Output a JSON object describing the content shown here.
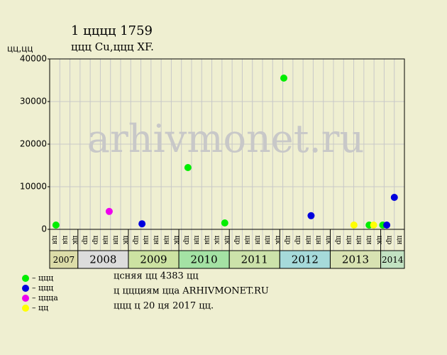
{
  "chart_data": {
    "type": "scatter",
    "title": "1 цццц 1759",
    "subtitle": "ццц Cu,ццц XF.",
    "ylabel": "цц,цц",
    "watermark": "arhivmonet.ru",
    "xlim": [
      2007.44,
      2014.47
    ],
    "xticks": [
      2008,
      2009,
      2010,
      2011,
      2012,
      2013,
      2014
    ],
    "year_labels": [
      "2007",
      "2008",
      "2009",
      "2010",
      "2011",
      "2012",
      "2013",
      "2014"
    ],
    "year_colors": [
      "#dcdca8",
      "#dcdcdc",
      "#cce2a2",
      "#a4e2a4",
      "#cce2aa",
      "#a6dada",
      "#d8e2b2",
      "#c2e2c2"
    ],
    "month_labels": [
      "ця",
      "ця",
      "цк",
      "цр",
      "цр",
      "цн",
      "цн",
      "цк",
      "цр",
      "цн",
      "цн",
      "цн",
      "цк",
      "цр",
      "цн",
      "цн",
      "цк",
      "цк",
      "цр",
      "цн",
      "цн",
      "цн",
      "цк",
      "цр",
      "цр",
      "цн",
      "цн",
      "цк",
      "цр",
      "цн",
      "цн",
      "цн",
      "цк",
      "цр",
      "цн"
    ],
    "ylim": [
      0,
      40000
    ],
    "yticks": [
      0,
      10000,
      20000,
      30000,
      40000
    ],
    "grid": true,
    "series": [
      {
        "name": "– ццц",
        "color": "#00ee00",
        "x": [
          2007.565,
          2010.18,
          2010.91,
          2012.08,
          2013.77,
          2014.04
        ],
        "values": [
          1000,
          14500,
          1500,
          35500,
          1000,
          1000
        ]
      },
      {
        "name": "– ццц",
        "color": "#0000dd",
        "x": [
          2009.27,
          2012.62,
          2014.12,
          2014.27
        ],
        "values": [
          1300,
          3200,
          1000,
          7500
        ]
      },
      {
        "name": "– ццца",
        "color": "#ee00ee",
        "x": [
          2008.62
        ],
        "values": [
          4200
        ]
      },
      {
        "name": "– цц",
        "color": "#ffff00",
        "x": [
          2013.47,
          2013.86
        ],
        "values": [
          1000,
          1000
        ]
      }
    ],
    "notes": [
      "цcняя цц 4383 цц",
      "ц ццциям цца ARHIVMONET.RU",
      "ццц ц 20 ця 2017 цц."
    ]
  }
}
